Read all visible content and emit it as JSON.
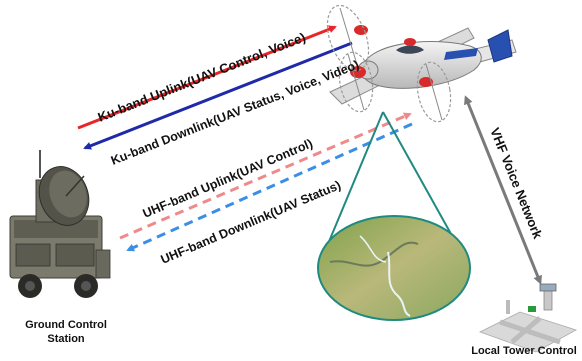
{
  "links": {
    "ku_uplink": "Ku-band Uplink(UAV Control, Voice)",
    "ku_downlink": "Ku-band Downlink(UAV Status, Voice, Video)",
    "uhf_uplink": "UHF-band Uplink(UAV Control)",
    "uhf_downlink": "UHF-band Downlink(UAV Status)",
    "vhf_network": "VHF Voice Network"
  },
  "nodes": {
    "ground_station_line1": "Ground Control",
    "ground_station_line2": "Station",
    "local_tower": "Local Tower Control"
  },
  "colors": {
    "ku_uplink": "#e8262a",
    "ku_downlink": "#1f2aa8",
    "uhf_uplink": "#f08a8a",
    "uhf_downlink": "#3a8ee6",
    "vhf_arrow": "#7a7a7a",
    "footprint_cone": "#1f8a80"
  },
  "icons": [
    "uav-aircraft-icon",
    "satellite-dish-truck-icon",
    "control-tower-icon",
    "camera-footprint-terrain"
  ]
}
